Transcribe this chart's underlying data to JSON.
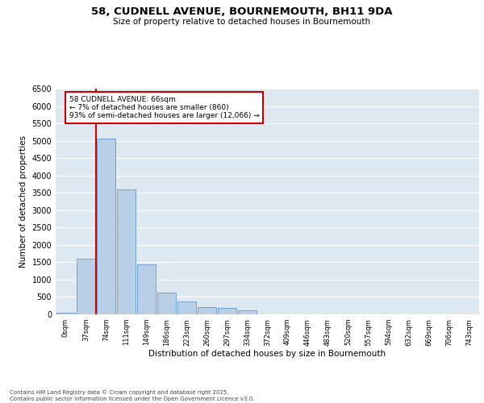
{
  "title_line1": "58, CUDNELL AVENUE, BOURNEMOUTH, BH11 9DA",
  "title_line2": "Size of property relative to detached houses in Bournemouth",
  "xlabel": "Distribution of detached houses by size in Bournemouth",
  "ylabel": "Number of detached properties",
  "footnote": "Contains HM Land Registry data © Crown copyright and database right 2025.\nContains public sector information licensed under the Open Government Licence v3.0.",
  "bar_color": "#b8cfe8",
  "bar_edge_color": "#6699cc",
  "background_color": "#dde8f0",
  "grid_color": "#ffffff",
  "annotation_box_color": "#cc0000",
  "property_line_color": "#cc0000",
  "categories": [
    "0sqm",
    "37sqm",
    "74sqm",
    "111sqm",
    "149sqm",
    "186sqm",
    "223sqm",
    "260sqm",
    "297sqm",
    "334sqm",
    "372sqm",
    "409sqm",
    "446sqm",
    "483sqm",
    "520sqm",
    "557sqm",
    "594sqm",
    "632sqm",
    "669sqm",
    "706sqm",
    "743sqm"
  ],
  "values": [
    50,
    1600,
    5050,
    3600,
    1450,
    620,
    370,
    210,
    190,
    110,
    0,
    0,
    0,
    0,
    0,
    0,
    0,
    0,
    0,
    0,
    0
  ],
  "ylim": [
    0,
    6500
  ],
  "yticks": [
    0,
    500,
    1000,
    1500,
    2000,
    2500,
    3000,
    3500,
    4000,
    4500,
    5000,
    5500,
    6000,
    6500
  ],
  "property_line_x": 1.48,
  "annotation_title": "58 CUDNELL AVENUE: 66sqm",
  "annotation_line1": "← 7% of detached houses are smaller (860)",
  "annotation_line2": "93% of semi-detached houses are larger (12,066) →"
}
